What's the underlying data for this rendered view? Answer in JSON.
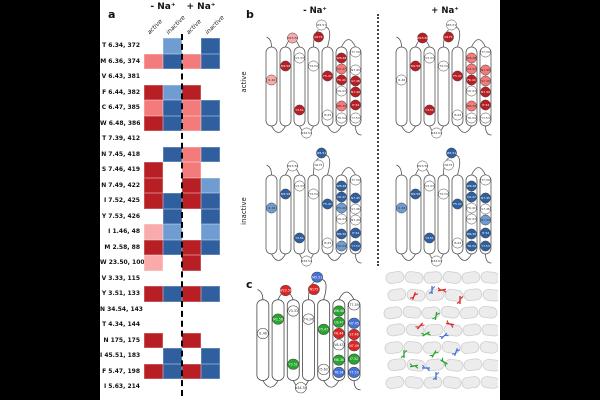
{
  "colors": {
    "DR": "#b81f25",
    "MR": "#f47b7b",
    "LR": "#f9abab",
    "DB": "#2f5f9e",
    "MB": "#6f9cd1",
    "LB": "#a9c6e4",
    "W": "#ffffff",
    "R": "#e02424",
    "G": "#28a52e",
    "B": "#4472d9",
    "background": "#000000",
    "figure_background": "#ffffff"
  },
  "panel_a": {
    "label": "a",
    "group_headers": [
      "- Na⁺",
      "+ Na⁺"
    ],
    "column_labels": [
      "active",
      "inactive",
      "active",
      "inactive"
    ]
  },
  "panel_b": {
    "label": "b",
    "headers": [
      "- Na⁺",
      "+ Na⁺"
    ],
    "side_labels": [
      "active",
      "inactive"
    ]
  },
  "panel_c": {
    "label": "c",
    "residue_colors": {
      "T6.34": "B",
      "M6.36": "G",
      "V6.43": "W",
      "F6.44": "R",
      "C6.47": "G",
      "W6.48": "G",
      "T7.39": "W",
      "N7.45": "B",
      "S7.46": "R",
      "N7.49": "R",
      "I7.52": "G",
      "Y7.53": "B",
      "I1.46": "W",
      "M2.58": "G",
      "W23.50": "R",
      "V3.33": "W",
      "Y3.51": "G",
      "N34.54": "W",
      "T4.34": "W",
      "N175": "R",
      "I45.51": "B",
      "F5.47": "G",
      "I5.63": "W"
    }
  },
  "chart_data": {
    "type": "heatmap",
    "columns": [
      "- Na⁺ active",
      "- Na⁺ inactive",
      "+ Na⁺ active",
      "+ Na⁺ inactive"
    ],
    "rows": [
      {
        "label": "T 6.34, 372",
        "residue": "T6.34",
        "values": [
          "W",
          "MB",
          "W",
          "DB"
        ]
      },
      {
        "label": "M 6.36, 374",
        "residue": "M6.36",
        "values": [
          "MR",
          "DB",
          "MR",
          "DB"
        ]
      },
      {
        "label": "V 6.43, 381",
        "residue": "V6.43",
        "values": [
          "W",
          "W",
          "W",
          "W"
        ]
      },
      {
        "label": "F 6.44, 382",
        "residue": "F6.44",
        "values": [
          "DR",
          "MB",
          "DR",
          "W"
        ]
      },
      {
        "label": "C 6.47, 385",
        "residue": "C6.47",
        "values": [
          "MR",
          "DB",
          "MR",
          "DB"
        ]
      },
      {
        "label": "W 6.48, 386",
        "residue": "W6.48",
        "values": [
          "DR",
          "DB",
          "MR",
          "DB"
        ]
      },
      {
        "label": "T 7.39, 412",
        "residue": "T7.39",
        "values": [
          "W",
          "W",
          "W",
          "W"
        ]
      },
      {
        "label": "N 7.45, 418",
        "residue": "N7.45",
        "values": [
          "W",
          "DB",
          "MR",
          "DB"
        ]
      },
      {
        "label": "S 7.46, 419",
        "residue": "S7.46",
        "values": [
          "DR",
          "W",
          "MR",
          "W"
        ]
      },
      {
        "label": "N 7.49, 422",
        "residue": "N7.49",
        "values": [
          "DR",
          "W",
          "DR",
          "MB"
        ]
      },
      {
        "label": "I 7.52, 425",
        "residue": "I7.52",
        "values": [
          "DR",
          "DB",
          "DR",
          "DB"
        ]
      },
      {
        "label": "Y 7.53, 426",
        "residue": "Y7.53",
        "values": [
          "W",
          "DB",
          "W",
          "DB"
        ]
      },
      {
        "label": "I 1.46, 48",
        "residue": "I1.46",
        "values": [
          "LR",
          "MB",
          "W",
          "MB"
        ]
      },
      {
        "label": "M 2.58, 88",
        "residue": "M2.58",
        "values": [
          "DR",
          "DB",
          "DR",
          "DB"
        ]
      },
      {
        "label": "W 23.50, 100",
        "residue": "W23.50",
        "values": [
          "LR",
          "W",
          "DR",
          "W"
        ]
      },
      {
        "label": "V 3.33, 115",
        "residue": "V3.33",
        "values": [
          "W",
          "W",
          "W",
          "W"
        ]
      },
      {
        "label": "Y 3.51, 133",
        "residue": "Y3.51",
        "values": [
          "DR",
          "DB",
          "DR",
          "DB"
        ]
      },
      {
        "label": "N 34.54, 143",
        "residue": "N34.54",
        "values": [
          "W",
          "W",
          "W",
          "W"
        ]
      },
      {
        "label": "T 4.34, 144",
        "residue": "T4.34",
        "values": [
          "W",
          "W",
          "W",
          "W"
        ]
      },
      {
        "label": "N 175, 175",
        "residue": "N175",
        "values": [
          "DR",
          "W",
          "DR",
          "W"
        ]
      },
      {
        "label": "I 45.51, 183",
        "residue": "I45.51",
        "values": [
          "W",
          "DB",
          "W",
          "DB"
        ]
      },
      {
        "label": "F 5.47, 198",
        "residue": "F5.47",
        "values": [
          "DR",
          "DB",
          "DR",
          "DB"
        ]
      },
      {
        "label": "I 5.63, 214",
        "residue": "I5.63",
        "values": [
          "W",
          "W",
          "W",
          "W"
        ]
      }
    ]
  }
}
